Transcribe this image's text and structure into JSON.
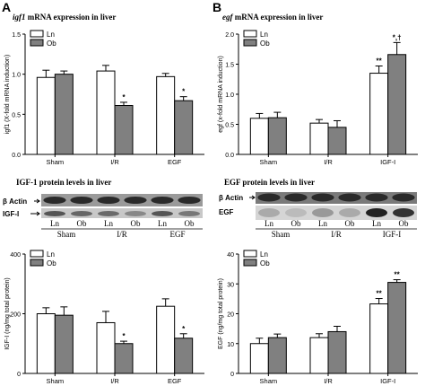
{
  "panels": {
    "A": {
      "letter": "A",
      "mrna_title_gene": "igf1",
      "mrna_title_rest": " mRNA expression in liver",
      "blot_title": "IGF-1 protein levels in liver",
      "blot_row_labels": [
        "β Actin",
        "IGF-I"
      ],
      "blot_lane_labels": [
        "Ln",
        "Ob",
        "Ln",
        "Ob",
        "Ln",
        "Ob"
      ],
      "blot_group_labels": [
        "Sham",
        "I/R",
        "EGF"
      ]
    },
    "B": {
      "letter": "B",
      "mrna_title_gene": "egf",
      "mrna_title_rest": " mRNA expression in liver",
      "blot_title": "EGF protein levels in liver",
      "blot_row_labels": [
        "β Actin",
        "EGF"
      ],
      "blot_lane_labels": [
        "Ln",
        "Ob",
        "Ln",
        "Ob",
        "Ln",
        "Ob"
      ],
      "blot_group_labels": [
        "Sham",
        "I/R",
        "IGF-I"
      ]
    }
  },
  "colors": {
    "ln": "#ffffff",
    "ob": "#808080",
    "stroke": "#000000"
  },
  "chart_data": [
    {
      "id": "A-mrna",
      "type": "bar",
      "categories": [
        "Sham",
        "I/R",
        "EGF"
      ],
      "ylabel": "igf1 (X-fold mRNA induction)",
      "ylim": [
        0,
        1.5
      ],
      "yticks": [
        "0.0",
        "0.5",
        "1.0",
        "1.5"
      ],
      "ytick_values": [
        0,
        0.5,
        1.0,
        1.5
      ],
      "series": [
        {
          "name": "Ln",
          "values": [
            0.96,
            1.04,
            0.97
          ],
          "errors": [
            0.09,
            0.07,
            0.04
          ],
          "marks": [
            "",
            "",
            ""
          ]
        },
        {
          "name": "Ob",
          "values": [
            1.0,
            0.61,
            0.67
          ],
          "errors": [
            0.04,
            0.04,
            0.05
          ],
          "marks": [
            "",
            "*",
            "*"
          ]
        }
      ],
      "legend": "top-left"
    },
    {
      "id": "B-mrna",
      "type": "bar",
      "categories": [
        "Sham",
        "I/R",
        "IGF-I"
      ],
      "ylabel": "egf (x-fold mRNA induction)",
      "ylim": [
        0,
        2.0
      ],
      "yticks": [
        "0.0",
        "0.5",
        "1.0",
        "1.5",
        "2.0"
      ],
      "ytick_values": [
        0,
        0.5,
        1.0,
        1.5,
        2.0
      ],
      "series": [
        {
          "name": "Ln",
          "values": [
            0.6,
            0.52,
            1.35
          ],
          "errors": [
            0.08,
            0.06,
            0.12
          ],
          "marks": [
            "",
            "",
            "**"
          ]
        },
        {
          "name": "Ob",
          "values": [
            0.61,
            0.45,
            1.66
          ],
          "errors": [
            0.09,
            0.11,
            0.2
          ],
          "marks": [
            "",
            "",
            "*,†"
          ]
        }
      ],
      "legend": "top-left"
    },
    {
      "id": "A-protein",
      "type": "bar",
      "categories": [
        "Sham",
        "I/R",
        "EGF"
      ],
      "ylabel": "IGF-I (ng/mg total protein)",
      "ylim": [
        0,
        400
      ],
      "yticks": [
        "0",
        "200",
        "400"
      ],
      "ytick_values": [
        0,
        200,
        400
      ],
      "series": [
        {
          "name": "Ln",
          "values": [
            200,
            170,
            225
          ],
          "errors": [
            20,
            38,
            25
          ],
          "marks": [
            "",
            "",
            ""
          ]
        },
        {
          "name": "Ob",
          "values": [
            195,
            100,
            118
          ],
          "errors": [
            28,
            8,
            15
          ],
          "marks": [
            "",
            "*",
            "*"
          ]
        }
      ],
      "legend": "top-left"
    },
    {
      "id": "B-protein",
      "type": "bar",
      "categories": [
        "Sham",
        "I/R",
        "IGF-I"
      ],
      "ylabel": "EGF (ng/mg total protein)",
      "ylim": [
        0,
        40
      ],
      "yticks": [
        "0",
        "10",
        "20",
        "30",
        "40"
      ],
      "ytick_values": [
        0,
        10,
        20,
        30,
        40
      ],
      "series": [
        {
          "name": "Ln",
          "values": [
            10,
            12,
            23.3
          ],
          "errors": [
            1.8,
            1.3,
            1.8
          ],
          "marks": [
            "",
            "",
            "**"
          ]
        },
        {
          "name": "Ob",
          "values": [
            12,
            14,
            30.5
          ],
          "errors": [
            1.2,
            1.8,
            0.9
          ],
          "marks": [
            "",
            "",
            "**"
          ]
        }
      ],
      "legend": "top-left"
    }
  ]
}
